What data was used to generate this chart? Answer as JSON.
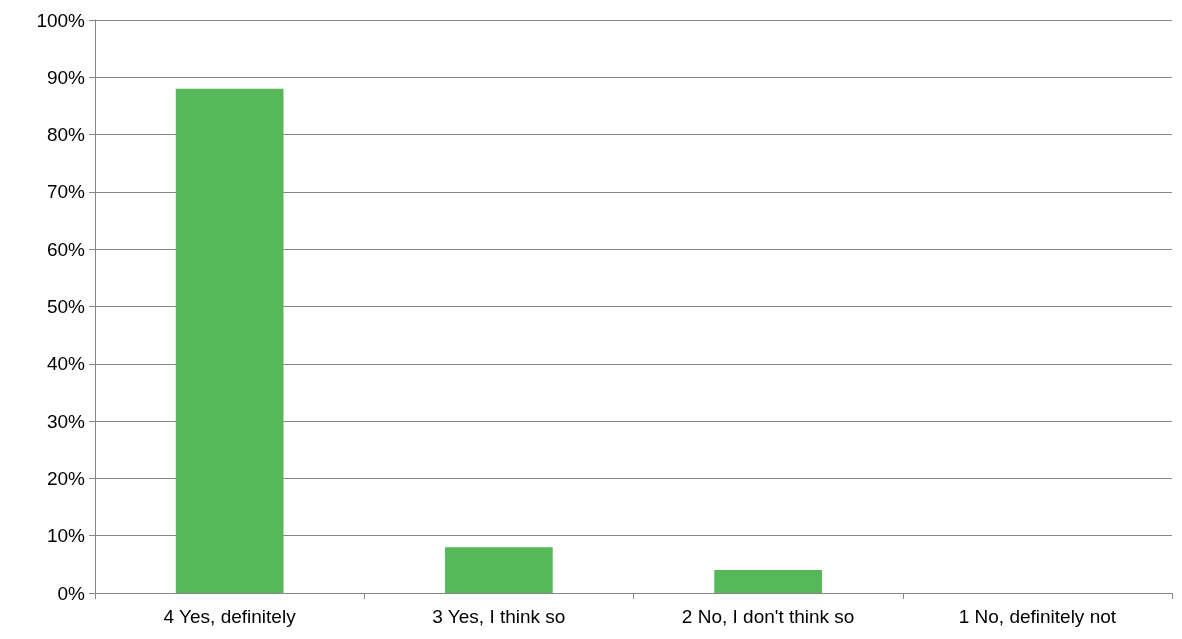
{
  "chart_data": {
    "type": "bar",
    "categories": [
      "4 Yes, definitely",
      "3 Yes, I think so",
      "2 No, I don't think so",
      "1 No, definitely not"
    ],
    "values": [
      88,
      8,
      4,
      0
    ],
    "color": "#55b95a",
    "ylim": [
      0,
      100
    ],
    "yticks": [
      {
        "value": 0,
        "label": "0%"
      },
      {
        "value": 10,
        "label": "10%"
      },
      {
        "value": 20,
        "label": "20%"
      },
      {
        "value": 30,
        "label": "30%"
      },
      {
        "value": 40,
        "label": "40%"
      },
      {
        "value": 50,
        "label": "50%"
      },
      {
        "value": 60,
        "label": "60%"
      },
      {
        "value": 70,
        "label": "70%"
      },
      {
        "value": 80,
        "label": "80%"
      },
      {
        "value": 90,
        "label": "90%"
      },
      {
        "value": 100,
        "label": "100%"
      }
    ],
    "grid": "y"
  }
}
